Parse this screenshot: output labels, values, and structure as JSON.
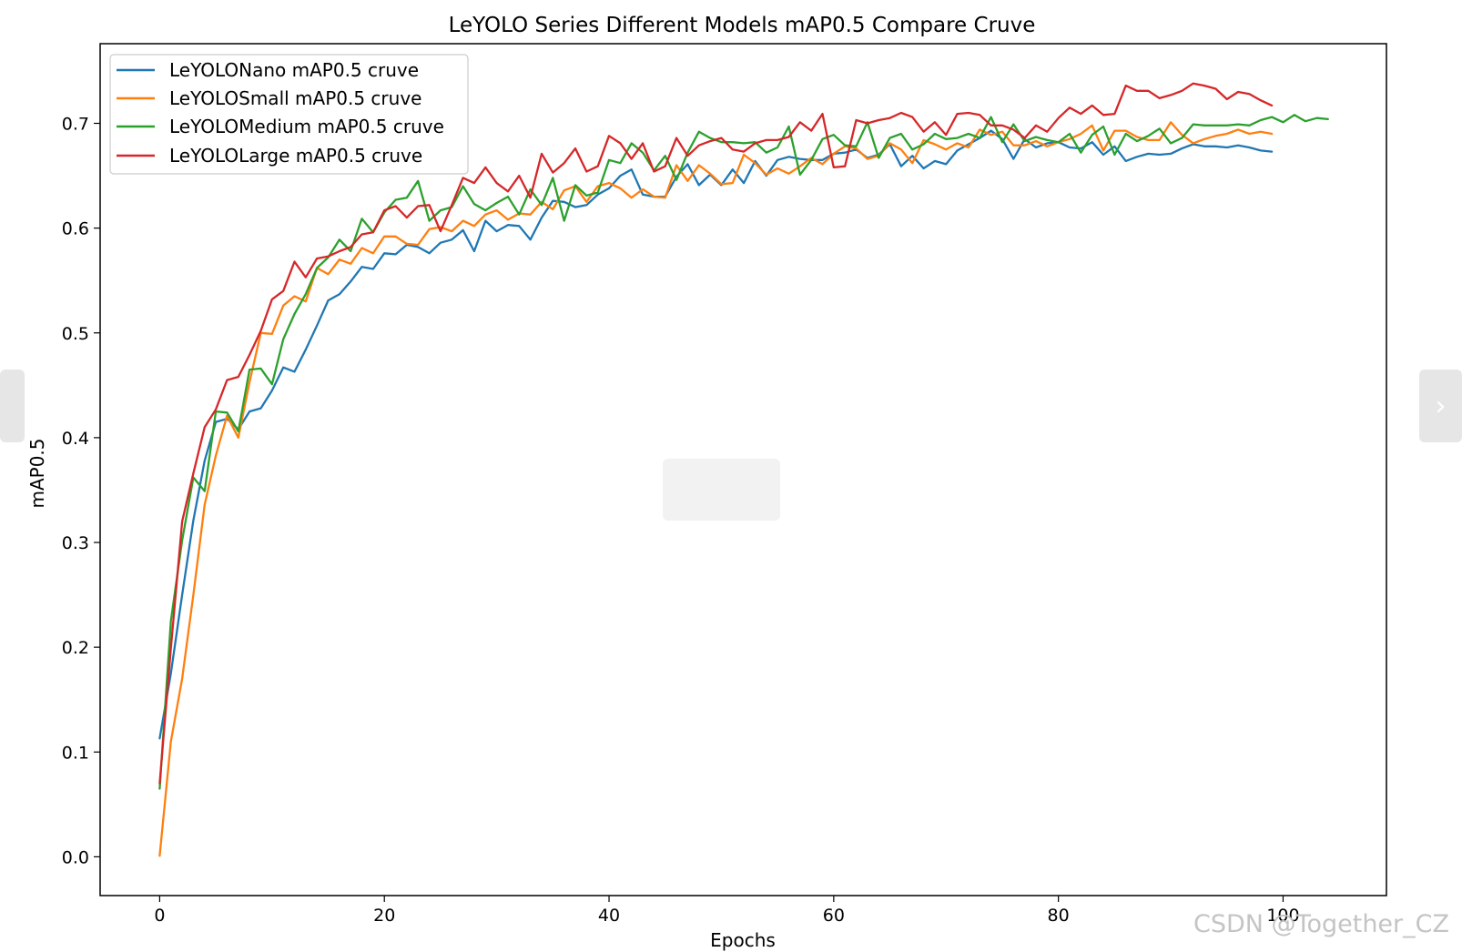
{
  "chart_data": {
    "type": "line",
    "title": "LeYOLO Series Different Models mAP0.5 Compare Cruve",
    "xlabel": "Epochs",
    "ylabel": "mAP0.5",
    "xlim": [
      -5.3,
      109.2
    ],
    "ylim": [
      -0.037,
      0.776
    ],
    "xticks": [
      0,
      20,
      40,
      60,
      80,
      100
    ],
    "xtick_labels": [
      "0",
      "20",
      "40",
      "60",
      "80",
      "100"
    ],
    "yticks": [
      0.0,
      0.1,
      0.2,
      0.3,
      0.4,
      0.5,
      0.6,
      0.7
    ],
    "ytick_labels": [
      "0.0",
      "0.1",
      "0.2",
      "0.3",
      "0.4",
      "0.5",
      "0.6",
      "0.7"
    ],
    "grid": false,
    "legend_position": "upper-left",
    "series": [
      {
        "name": "LeYOLONano mAP0.5 cruve",
        "color": "#1f77b4",
        "x": [
          0,
          1,
          2,
          3,
          4,
          5,
          6,
          7,
          8,
          9,
          10,
          11,
          12,
          13,
          14,
          15,
          16,
          17,
          18,
          19,
          20,
          21,
          22,
          23,
          24,
          25,
          26,
          27,
          28,
          29,
          30,
          31,
          32,
          33,
          34,
          35,
          36,
          37,
          38,
          39,
          40,
          41,
          42,
          43,
          44,
          45,
          46,
          47,
          48,
          49,
          50,
          51,
          52,
          53,
          54,
          55,
          56,
          57,
          58,
          59,
          60,
          61,
          62,
          63,
          64,
          65,
          66,
          67,
          68,
          69,
          70,
          71,
          72,
          73,
          74,
          75,
          76,
          77,
          78,
          79,
          80,
          81,
          82,
          83,
          84,
          85,
          86,
          87,
          88,
          89,
          90,
          91,
          92,
          93,
          94,
          95,
          96,
          97,
          98,
          99
        ],
        "y": [
          0.113,
          0.175,
          0.25,
          0.321,
          0.378,
          0.415,
          0.418,
          0.408,
          0.425,
          0.428,
          0.445,
          0.467,
          0.463,
          0.484,
          0.507,
          0.531,
          0.537,
          0.549,
          0.563,
          0.561,
          0.576,
          0.575,
          0.584,
          0.582,
          0.576,
          0.586,
          0.589,
          0.598,
          0.578,
          0.607,
          0.597,
          0.603,
          0.602,
          0.589,
          0.61,
          0.626,
          0.625,
          0.62,
          0.622,
          0.632,
          0.638,
          0.65,
          0.656,
          0.632,
          0.63,
          0.63,
          0.649,
          0.661,
          0.641,
          0.651,
          0.641,
          0.656,
          0.643,
          0.664,
          0.65,
          0.665,
          0.668,
          0.666,
          0.665,
          0.665,
          0.671,
          0.672,
          0.675,
          0.667,
          0.67,
          0.68,
          0.659,
          0.669,
          0.657,
          0.664,
          0.661,
          0.674,
          0.68,
          0.686,
          0.693,
          0.685,
          0.666,
          0.685,
          0.677,
          0.681,
          0.682,
          0.677,
          0.676,
          0.682,
          0.67,
          0.678,
          0.664,
          0.668,
          0.671,
          0.67,
          0.671,
          0.676,
          0.68,
          0.678,
          0.678,
          0.677,
          0.679,
          0.677,
          0.674,
          0.673
        ]
      },
      {
        "name": "LeYOLOSmall mAP0.5 cruve",
        "color": "#ff7f0e",
        "x": [
          0,
          1,
          2,
          3,
          4,
          5,
          6,
          7,
          8,
          9,
          10,
          11,
          12,
          13,
          14,
          15,
          16,
          17,
          18,
          19,
          20,
          21,
          22,
          23,
          24,
          25,
          26,
          27,
          28,
          29,
          30,
          31,
          32,
          33,
          34,
          35,
          36,
          37,
          38,
          39,
          40,
          41,
          42,
          43,
          44,
          45,
          46,
          47,
          48,
          49,
          50,
          51,
          52,
          53,
          54,
          55,
          56,
          57,
          58,
          59,
          60,
          61,
          62,
          63,
          64,
          65,
          66,
          67,
          68,
          69,
          70,
          71,
          72,
          73,
          74,
          75,
          76,
          77,
          78,
          79,
          80,
          81,
          82,
          83,
          84,
          85,
          86,
          87,
          88,
          89,
          90,
          91,
          92,
          93,
          94,
          95,
          96,
          97,
          98,
          99
        ],
        "y": [
          0.001,
          0.11,
          0.17,
          0.25,
          0.336,
          0.383,
          0.421,
          0.4,
          0.453,
          0.5,
          0.499,
          0.526,
          0.535,
          0.53,
          0.562,
          0.556,
          0.57,
          0.566,
          0.581,
          0.576,
          0.592,
          0.592,
          0.585,
          0.584,
          0.599,
          0.601,
          0.597,
          0.607,
          0.602,
          0.613,
          0.617,
          0.608,
          0.614,
          0.613,
          0.625,
          0.618,
          0.636,
          0.64,
          0.625,
          0.64,
          0.643,
          0.638,
          0.629,
          0.637,
          0.63,
          0.629,
          0.66,
          0.645,
          0.66,
          0.652,
          0.642,
          0.643,
          0.67,
          0.662,
          0.651,
          0.657,
          0.652,
          0.659,
          0.667,
          0.661,
          0.671,
          0.678,
          0.676,
          0.666,
          0.669,
          0.681,
          0.675,
          0.662,
          0.684,
          0.68,
          0.675,
          0.681,
          0.677,
          0.694,
          0.689,
          0.692,
          0.679,
          0.679,
          0.683,
          0.678,
          0.682,
          0.685,
          0.69,
          0.698,
          0.674,
          0.693,
          0.693,
          0.687,
          0.684,
          0.684,
          0.701,
          0.689,
          0.681,
          0.685,
          0.688,
          0.69,
          0.694,
          0.69,
          0.692,
          0.69
        ]
      },
      {
        "name": "LeYOLOMedium mAP0.5 cruve",
        "color": "#2ca02c",
        "x": [
          0,
          1,
          2,
          3,
          4,
          5,
          6,
          7,
          8,
          9,
          10,
          11,
          12,
          13,
          14,
          15,
          16,
          17,
          18,
          19,
          20,
          21,
          22,
          23,
          24,
          25,
          26,
          27,
          28,
          29,
          30,
          31,
          32,
          33,
          34,
          35,
          36,
          37,
          38,
          39,
          40,
          41,
          42,
          43,
          44,
          45,
          46,
          47,
          48,
          49,
          50,
          51,
          52,
          53,
          54,
          55,
          56,
          57,
          58,
          59,
          60,
          61,
          62,
          63,
          64,
          65,
          66,
          67,
          68,
          69,
          70,
          71,
          72,
          73,
          74,
          75,
          76,
          77,
          78,
          79,
          80,
          81,
          82,
          83,
          84,
          85,
          86,
          87,
          88,
          89,
          90,
          91,
          92,
          93,
          94,
          95,
          96,
          97,
          98,
          99,
          100,
          101,
          102,
          103,
          104
        ],
        "y": [
          0.065,
          0.225,
          0.302,
          0.362,
          0.349,
          0.425,
          0.424,
          0.406,
          0.465,
          0.466,
          0.451,
          0.494,
          0.518,
          0.537,
          0.562,
          0.572,
          0.589,
          0.578,
          0.609,
          0.596,
          0.615,
          0.627,
          0.629,
          0.645,
          0.607,
          0.617,
          0.62,
          0.64,
          0.623,
          0.617,
          0.624,
          0.63,
          0.613,
          0.637,
          0.622,
          0.648,
          0.607,
          0.641,
          0.631,
          0.634,
          0.665,
          0.662,
          0.681,
          0.672,
          0.655,
          0.669,
          0.646,
          0.672,
          0.692,
          0.686,
          0.682,
          0.682,
          0.681,
          0.682,
          0.672,
          0.677,
          0.697,
          0.651,
          0.665,
          0.685,
          0.689,
          0.679,
          0.678,
          0.701,
          0.667,
          0.686,
          0.69,
          0.675,
          0.68,
          0.69,
          0.685,
          0.686,
          0.69,
          0.686,
          0.706,
          0.682,
          0.699,
          0.683,
          0.687,
          0.684,
          0.682,
          0.69,
          0.672,
          0.689,
          0.697,
          0.67,
          0.69,
          0.683,
          0.688,
          0.695,
          0.681,
          0.686,
          0.699,
          0.698,
          0.698,
          0.698,
          0.699,
          0.698,
          0.703,
          0.706,
          0.701,
          0.708,
          0.702,
          0.705,
          0.704
        ]
      },
      {
        "name": "LeYOLOLarge mAP0.5 cruve",
        "color": "#d62728",
        "x": [
          0,
          1,
          2,
          3,
          4,
          5,
          6,
          7,
          8,
          9,
          10,
          11,
          12,
          13,
          14,
          15,
          16,
          17,
          18,
          19,
          20,
          21,
          22,
          23,
          24,
          25,
          26,
          27,
          28,
          29,
          30,
          31,
          32,
          33,
          34,
          35,
          36,
          37,
          38,
          39,
          40,
          41,
          42,
          43,
          44,
          45,
          46,
          47,
          48,
          49,
          50,
          51,
          52,
          53,
          54,
          55,
          56,
          57,
          58,
          59,
          60,
          61,
          62,
          63,
          64,
          65,
          66,
          67,
          68,
          69,
          70,
          71,
          72,
          73,
          74,
          75,
          76,
          77,
          78,
          79,
          80,
          81,
          82,
          83,
          84,
          85,
          86,
          87,
          88,
          89,
          90,
          91,
          92,
          93,
          94,
          95,
          96,
          97,
          98,
          99
        ],
        "y": [
          0.07,
          0.199,
          0.32,
          0.366,
          0.41,
          0.427,
          0.455,
          0.458,
          0.479,
          0.502,
          0.532,
          0.54,
          0.568,
          0.553,
          0.571,
          0.573,
          0.578,
          0.582,
          0.594,
          0.596,
          0.617,
          0.621,
          0.61,
          0.621,
          0.622,
          0.597,
          0.622,
          0.648,
          0.643,
          0.658,
          0.643,
          0.635,
          0.65,
          0.629,
          0.671,
          0.653,
          0.662,
          0.676,
          0.654,
          0.659,
          0.688,
          0.681,
          0.666,
          0.681,
          0.654,
          0.659,
          0.686,
          0.669,
          0.679,
          0.683,
          0.686,
          0.675,
          0.673,
          0.681,
          0.684,
          0.684,
          0.687,
          0.701,
          0.693,
          0.709,
          0.658,
          0.659,
          0.703,
          0.7,
          0.703,
          0.705,
          0.71,
          0.706,
          0.692,
          0.701,
          0.689,
          0.709,
          0.71,
          0.708,
          0.698,
          0.698,
          0.694,
          0.686,
          0.698,
          0.692,
          0.705,
          0.715,
          0.709,
          0.717,
          0.708,
          0.709,
          0.736,
          0.731,
          0.731,
          0.724,
          0.727,
          0.731,
          0.738,
          0.736,
          0.733,
          0.723,
          0.73,
          0.728,
          0.722,
          0.717
        ]
      }
    ]
  },
  "ui": {
    "next_icon": "›",
    "watermark": "CSDN @Together_CZ"
  }
}
